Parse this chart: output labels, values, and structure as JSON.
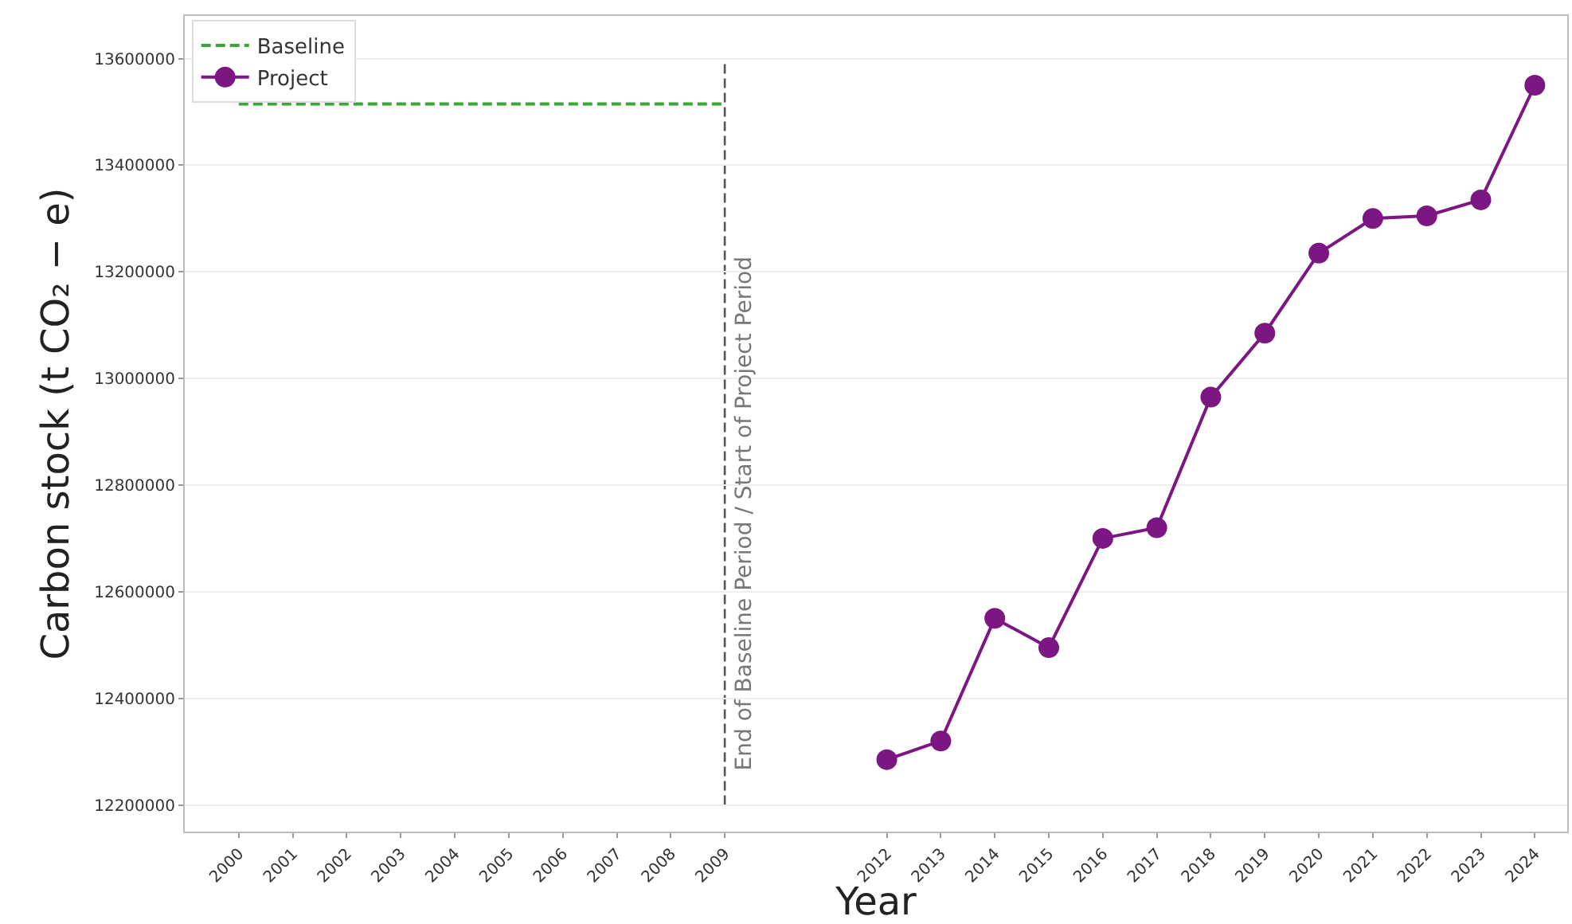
{
  "chart_data": {
    "type": "line",
    "xlabel": "Year",
    "ylabel": "Carbon stock (t CO₂ − e)",
    "series": [
      {
        "name": "Baseline",
        "color": "#3aa63a",
        "line_style": "dashed",
        "marker": "none",
        "x": [
          2000,
          2009
        ],
        "values": [
          13515000,
          13515000
        ]
      },
      {
        "name": "Project",
        "color": "#7b1683",
        "line_style": "solid",
        "marker": "circle",
        "x": [
          2012,
          2013,
          2014,
          2015,
          2016,
          2017,
          2018,
          2019,
          2020,
          2021,
          2022,
          2023,
          2024
        ],
        "values": [
          12285000,
          12320000,
          12550000,
          12495000,
          12700000,
          12720000,
          12965000,
          13085000,
          13235000,
          13300000,
          13305000,
          13335000,
          13550000
        ]
      }
    ],
    "xlim": [
      1999,
      2024.6
    ],
    "xticks": [
      2000,
      2001,
      2002,
      2003,
      2004,
      2005,
      2006,
      2007,
      2008,
      2009,
      2012,
      2013,
      2014,
      2015,
      2016,
      2017,
      2018,
      2019,
      2020,
      2021,
      2022,
      2023,
      2024
    ],
    "ylim": [
      12150000,
      13680000
    ],
    "yticks": [
      12200000,
      12400000,
      12600000,
      12800000,
      13000000,
      13200000,
      13400000,
      13600000
    ],
    "ref_lines": [
      {
        "axis": "x",
        "value": 2009,
        "label": "End of Baseline Period / Start of Project Period",
        "color": "#555555",
        "line_style": "dashed"
      }
    ],
    "grid": "y",
    "legend": "top left"
  }
}
